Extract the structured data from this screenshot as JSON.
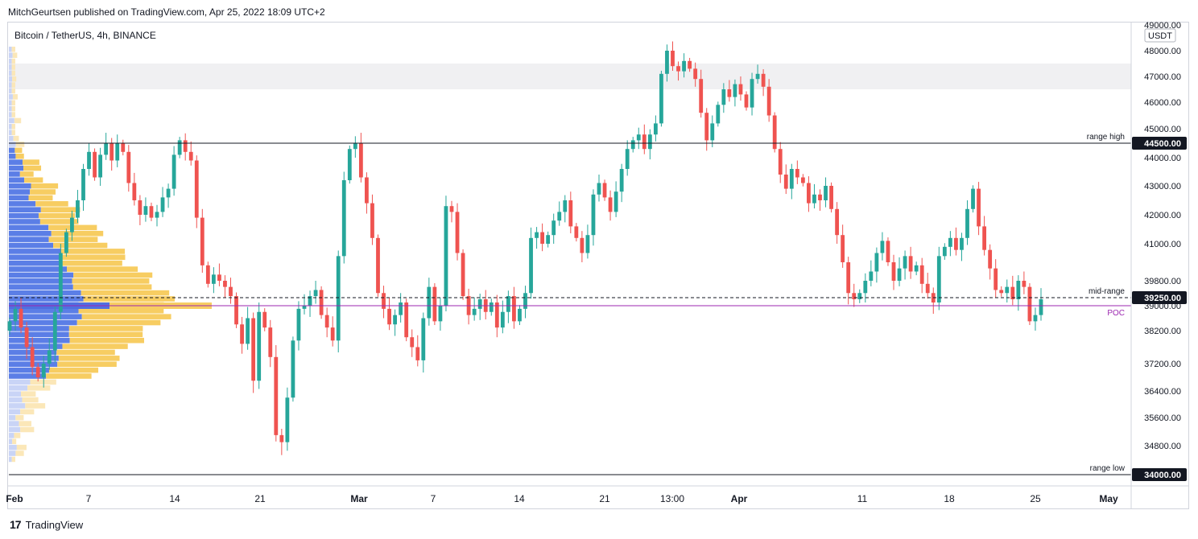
{
  "header": {
    "published": "MitchGeurtsen published on TradingView.com, Apr 25, 2022 18:09 UTC+2"
  },
  "symbol": {
    "title": "Bitcoin / TetherUS, 4h, BINANCE"
  },
  "footer": {
    "logo": "17",
    "brand": "TradingView"
  },
  "chart_data": {
    "type": "candlestick",
    "title": "Bitcoin / TetherUS, 4h, BINANCE",
    "currency": "USDT",
    "y_axis_ticks": [
      "49000.00",
      "48000.00",
      "47000.00",
      "46000.00",
      "45000.00",
      "44000.00",
      "43000.00",
      "42000.00",
      "41000.00",
      "39800.00",
      "39000.00",
      "38200.00",
      "37200.00",
      "36400.00",
      "35600.00",
      "34800.00"
    ],
    "x_axis_ticks": [
      "Feb",
      "7",
      "14",
      "21",
      "Mar",
      "7",
      "14",
      "21",
      "13:00",
      "Apr",
      "11",
      "18",
      "25",
      "May"
    ],
    "levels": [
      {
        "name": "range high",
        "value": 44500,
        "price_label": "44500.00",
        "style": "solid",
        "color": "#131722"
      },
      {
        "name": "mid-range",
        "value": 39250,
        "price_label": "39250.00",
        "style": "dashed",
        "color": "#131722"
      },
      {
        "name": "POC",
        "value": 39000,
        "price_label": "",
        "style": "solid",
        "color": "#9c27b0"
      },
      {
        "name": "range low",
        "value": 34000,
        "price_label": "34000.00",
        "style": "solid",
        "color": "#131722"
      }
    ],
    "zone": {
      "from": 46500,
      "to": 47500,
      "color": "#f0f0f2"
    },
    "closes": [
      38500,
      38900,
      38300,
      37700,
      37100,
      36800,
      37200,
      37600,
      38800,
      40700,
      41400,
      41900,
      42500,
      43600,
      44200,
      43300,
      44100,
      44500,
      43900,
      44500,
      44200,
      43100,
      42500,
      42000,
      42300,
      41900,
      42100,
      42600,
      42900,
      44100,
      44600,
      44200,
      43900,
      41900,
      40300,
      39700,
      40000,
      39800,
      39600,
      39300,
      38400,
      37800,
      38600,
      36700,
      38800,
      38300,
      37400,
      35100,
      34900,
      36200,
      37900,
      38900,
      39000,
      39300,
      39500,
      38700,
      38300,
      37900,
      40600,
      43200,
      44300,
      44500,
      43300,
      42400,
      41200,
      39400,
      38900,
      38400,
      38700,
      39100,
      38000,
      37700,
      37300,
      38600,
      39600,
      38500,
      39000,
      42300,
      42100,
      40700,
      39300,
      38700,
      38900,
      39200,
      38800,
      39100,
      38300,
      38800,
      39300,
      38500,
      38900,
      39400,
      41200,
      41400,
      41000,
      41300,
      41800,
      42100,
      42500,
      41600,
      41200,
      40700,
      41300,
      42700,
      43100,
      42600,
      42100,
      42800,
      43600,
      44300,
      44600,
      44800,
      44300,
      44800,
      45200,
      47100,
      48000,
      47400,
      47200,
      47600,
      47300,
      46900,
      45600,
      44600,
      45200,
      45900,
      46500,
      46200,
      46700,
      46300,
      45800,
      46900,
      47100,
      46600,
      45500,
      44300,
      43400,
      42900,
      43600,
      43300,
      43100,
      42400,
      42700,
      42500,
      43000,
      42200,
      41300,
      40400,
      39400,
      39200,
      39400,
      39800,
      40100,
      40700,
      41100,
      40400,
      39800,
      40200,
      40600,
      40100,
      40300,
      39700,
      39400,
      39100,
      40600,
      40900,
      41200,
      40800,
      41200,
      42200,
      42900,
      41600,
      40800,
      40200,
      39500,
      39400,
      39600,
      39200,
      39800,
      39600,
      38500,
      38700,
      39200
    ]
  }
}
